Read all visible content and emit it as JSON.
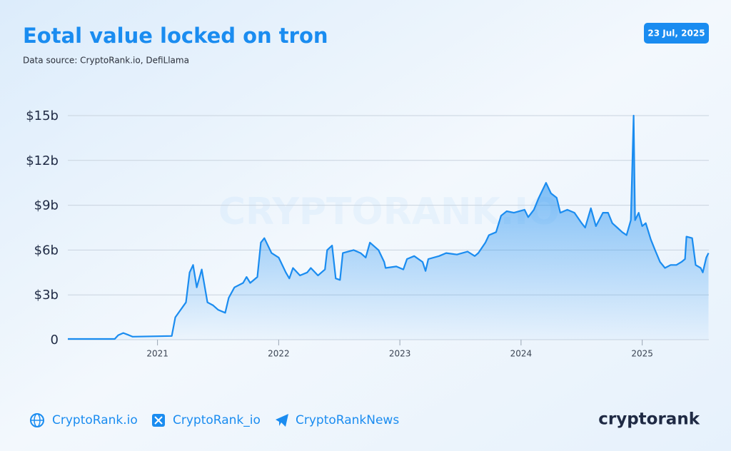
{
  "header": {
    "date": "23 Jul, 2025"
  },
  "chart_data": {
    "type": "area",
    "title": "Eotal value locked on tron",
    "subtitle": "Data source: CryptoRank.io, DefiLlama",
    "watermark": "CRYPTORANK.IO",
    "color": "#1a8cf0",
    "grid": true,
    "xlim": [
      2020.26,
      2025.55
    ],
    "xticks": [
      2021,
      2022,
      2023,
      2024,
      2025
    ],
    "ylim": [
      0,
      15
    ],
    "yticks": [
      0,
      {
        "value": 3,
        "label": "$3b"
      },
      {
        "value": 6,
        "label": "$6b"
      },
      {
        "value": 9,
        "label": "$9b"
      },
      {
        "value": 12,
        "label": "$12b"
      },
      {
        "value": 15,
        "label": "$15b"
      }
    ],
    "x": [
      2020.26,
      2020.647,
      2020.676,
      2020.718,
      2020.765,
      2020.794,
      2021.118,
      2021.147,
      2021.235,
      2021.265,
      2021.294,
      2021.324,
      2021.365,
      2021.412,
      2021.459,
      2021.5,
      2021.559,
      2021.588,
      2021.635,
      2021.706,
      2021.735,
      2021.765,
      2021.824,
      2021.853,
      2021.882,
      2021.941,
      2022.0,
      2022.059,
      2022.088,
      2022.118,
      2022.176,
      2022.235,
      2022.265,
      2022.324,
      2022.382,
      2022.4,
      2022.441,
      2022.471,
      2022.506,
      2022.529,
      2022.618,
      2022.676,
      2022.718,
      2022.753,
      2022.824,
      2022.871,
      2022.882,
      2022.971,
      2023.029,
      2023.059,
      2023.118,
      2023.188,
      2023.212,
      2023.235,
      2023.324,
      2023.382,
      2023.471,
      2023.559,
      2023.618,
      2023.647,
      2023.706,
      2023.735,
      2023.794,
      2023.835,
      2023.882,
      2023.941,
      2024.029,
      2024.059,
      2024.106,
      2024.147,
      2024.206,
      2024.247,
      2024.294,
      2024.324,
      2024.382,
      2024.441,
      2024.5,
      2024.529,
      2024.576,
      2024.618,
      2024.676,
      2024.718,
      2024.753,
      2024.794,
      2024.835,
      2024.871,
      2024.906,
      2024.929,
      2024.941,
      2024.971,
      2025.0,
      2025.029,
      2025.071,
      2025.106,
      2025.147,
      2025.188,
      2025.235,
      2025.282,
      2025.324,
      2025.353,
      2025.365,
      2025.412,
      2025.441,
      2025.482,
      2025.5,
      2025.529,
      2025.547
    ],
    "values": [
      0.05,
      0.05,
      0.3,
      0.45,
      0.3,
      0.2,
      0.25,
      1.5,
      2.5,
      4.5,
      5.0,
      3.5,
      4.7,
      2.5,
      2.3,
      2.0,
      1.8,
      2.8,
      3.5,
      3.8,
      4.2,
      3.8,
      4.2,
      6.5,
      6.8,
      5.8,
      5.5,
      4.5,
      4.1,
      4.8,
      4.3,
      4.5,
      4.8,
      4.3,
      4.7,
      6.0,
      6.3,
      4.1,
      4.0,
      5.8,
      6.0,
      5.8,
      5.5,
      6.5,
      6.0,
      5.2,
      4.8,
      4.9,
      4.7,
      5.4,
      5.6,
      5.2,
      4.6,
      5.4,
      5.6,
      5.8,
      5.7,
      5.9,
      5.6,
      5.8,
      6.5,
      7.0,
      7.2,
      8.3,
      8.6,
      8.5,
      8.7,
      8.2,
      8.7,
      9.5,
      10.5,
      9.8,
      9.5,
      8.5,
      8.7,
      8.5,
      7.8,
      7.5,
      8.8,
      7.6,
      8.5,
      8.5,
      7.8,
      7.5,
      7.2,
      7.0,
      8.0,
      15.0,
      8.0,
      8.5,
      7.6,
      7.8,
      6.7,
      6.0,
      5.2,
      4.8,
      5.0,
      5.0,
      5.2,
      5.4,
      6.9,
      6.8,
      5.0,
      4.8,
      4.5,
      5.5,
      5.8
    ]
  },
  "footer": {
    "links": [
      "CryptoRank.io",
      "CryptoRank_io",
      "CryptoRankNews"
    ],
    "logo": "cryptorank"
  }
}
